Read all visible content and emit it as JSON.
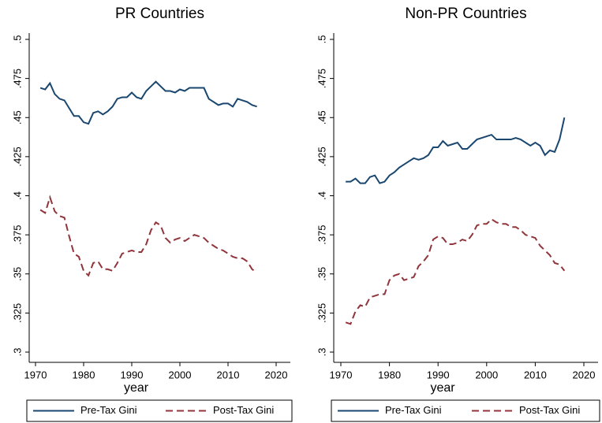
{
  "chart_data": [
    {
      "type": "line",
      "title": "PR Countries",
      "x_label": "year",
      "legend": "bottom",
      "x": [
        1971,
        1972,
        1973,
        1974,
        1975,
        1976,
        1977,
        1978,
        1979,
        1980,
        1981,
        1982,
        1983,
        1984,
        1985,
        1986,
        1987,
        1988,
        1989,
        1990,
        1991,
        1992,
        1993,
        1994,
        1995,
        1996,
        1997,
        1998,
        1999,
        2000,
        2001,
        2002,
        2003,
        2004,
        2005,
        2006,
        2007,
        2008,
        2009,
        2010,
        2011,
        2012,
        2013,
        2014,
        2015,
        2016
      ],
      "series": [
        {
          "name": "Pre-Tax Gini",
          "color": "#1a476f",
          "dash": false,
          "values": [
            0.469,
            0.468,
            0.472,
            0.465,
            0.462,
            0.461,
            0.456,
            0.451,
            0.451,
            0.447,
            0.446,
            0.453,
            0.454,
            0.452,
            0.454,
            0.457,
            0.462,
            0.463,
            0.463,
            0.466,
            0.463,
            0.462,
            0.467,
            0.47,
            0.473,
            0.47,
            0.467,
            0.467,
            0.466,
            0.468,
            0.467,
            0.469,
            0.469,
            0.469,
            0.469,
            0.462,
            0.46,
            0.458,
            0.459,
            0.459,
            0.457,
            0.462,
            0.461,
            0.46,
            0.458,
            0.457
          ]
        },
        {
          "name": "Post-Tax Gini",
          "color": "#90353b",
          "dash": true,
          "values": [
            0.391,
            0.389,
            0.399,
            0.39,
            0.387,
            0.386,
            0.374,
            0.363,
            0.361,
            0.352,
            0.349,
            0.357,
            0.358,
            0.353,
            0.353,
            0.352,
            0.357,
            0.363,
            0.364,
            0.365,
            0.364,
            0.364,
            0.369,
            0.378,
            0.383,
            0.381,
            0.373,
            0.37,
            0.372,
            0.373,
            0.371,
            0.373,
            0.375,
            0.374,
            0.373,
            0.37,
            0.368,
            0.366,
            0.365,
            0.363,
            0.361,
            0.36,
            0.36,
            0.358,
            0.353,
            0.351
          ]
        }
      ],
      "xlim": [
        1970,
        2020
      ],
      "xticks": [
        1970,
        1980,
        1990,
        2000,
        2010,
        2020
      ],
      "ylim": [
        0.3,
        0.5
      ],
      "yticks": [
        {
          "value": 0.3,
          "label": ".3"
        },
        {
          "value": 0.325,
          "label": ".325"
        },
        {
          "value": 0.35,
          "label": ".35"
        },
        {
          "value": 0.375,
          "label": ".375"
        },
        {
          "value": 0.4,
          "label": ".4"
        },
        {
          "value": 0.425,
          "label": ".425"
        },
        {
          "value": 0.45,
          "label": ".45"
        },
        {
          "value": 0.475,
          "label": ".475"
        },
        {
          "value": 0.5,
          "label": ".5"
        }
      ]
    },
    {
      "type": "line",
      "title": "Non-PR Countries",
      "x_label": "year",
      "legend": "bottom",
      "x": [
        1971,
        1972,
        1973,
        1974,
        1975,
        1976,
        1977,
        1978,
        1979,
        1980,
        1981,
        1982,
        1983,
        1984,
        1985,
        1986,
        1987,
        1988,
        1989,
        1990,
        1991,
        1992,
        1993,
        1994,
        1995,
        1996,
        1997,
        1998,
        1999,
        2000,
        2001,
        2002,
        2003,
        2004,
        2005,
        2006,
        2007,
        2008,
        2009,
        2010,
        2011,
        2012,
        2013,
        2014,
        2015,
        2016
      ],
      "series": [
        {
          "name": "Pre-Tax Gini",
          "color": "#1a476f",
          "dash": false,
          "values": [
            0.409,
            0.409,
            0.411,
            0.408,
            0.408,
            0.412,
            0.413,
            0.408,
            0.409,
            0.413,
            0.415,
            0.418,
            0.42,
            0.422,
            0.424,
            0.423,
            0.424,
            0.426,
            0.431,
            0.431,
            0.435,
            0.432,
            0.433,
            0.434,
            0.43,
            0.43,
            0.433,
            0.436,
            0.437,
            0.438,
            0.439,
            0.436,
            0.436,
            0.436,
            0.436,
            0.437,
            0.436,
            0.434,
            0.432,
            0.434,
            0.432,
            0.426,
            0.429,
            0.428,
            0.436,
            0.45
          ]
        },
        {
          "name": "Post-Tax Gini",
          "color": "#90353b",
          "dash": true,
          "values": [
            0.319,
            0.318,
            0.326,
            0.33,
            0.329,
            0.335,
            0.336,
            0.337,
            0.337,
            0.346,
            0.349,
            0.35,
            0.346,
            0.347,
            0.348,
            0.355,
            0.358,
            0.362,
            0.372,
            0.374,
            0.373,
            0.369,
            0.369,
            0.37,
            0.372,
            0.371,
            0.375,
            0.381,
            0.382,
            0.382,
            0.385,
            0.383,
            0.382,
            0.382,
            0.38,
            0.38,
            0.378,
            0.375,
            0.374,
            0.373,
            0.368,
            0.365,
            0.362,
            0.357,
            0.356,
            0.352
          ]
        }
      ],
      "xlim": [
        1970,
        2020
      ],
      "xticks": [
        1970,
        1980,
        1990,
        2000,
        2010,
        2020
      ],
      "ylim": [
        0.3,
        0.5
      ],
      "yticks": [
        {
          "value": 0.3,
          "label": ".3"
        },
        {
          "value": 0.325,
          "label": ".325"
        },
        {
          "value": 0.35,
          "label": ".35"
        },
        {
          "value": 0.375,
          "label": ".375"
        },
        {
          "value": 0.4,
          "label": ".4"
        },
        {
          "value": 0.425,
          "label": ".425"
        },
        {
          "value": 0.45,
          "label": ".45"
        },
        {
          "value": 0.475,
          "label": ".475"
        },
        {
          "value": 0.5,
          "label": ".5"
        }
      ]
    }
  ]
}
